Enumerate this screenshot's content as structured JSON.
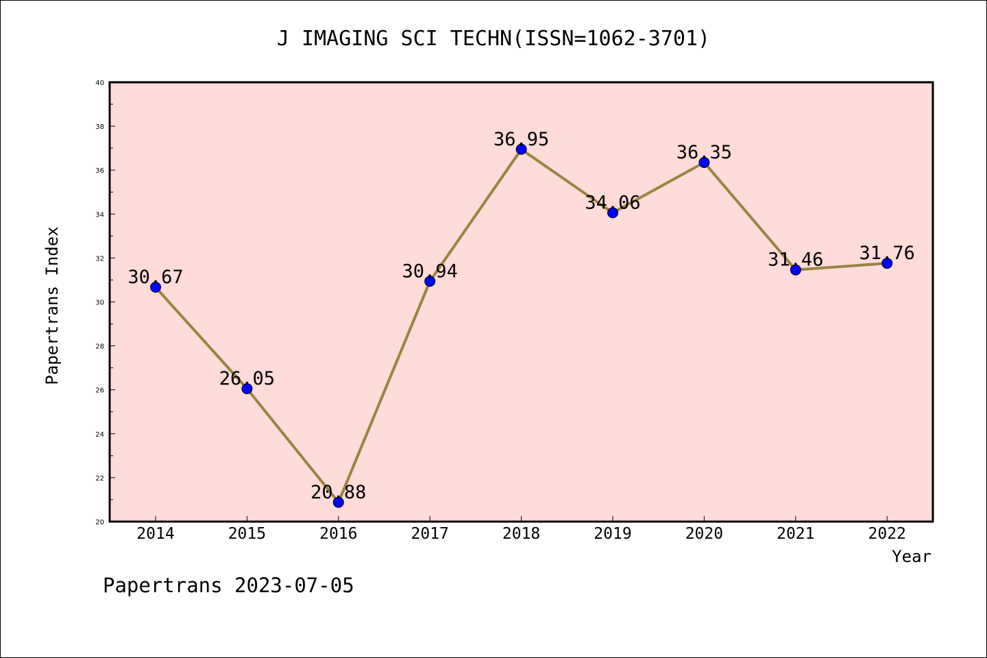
{
  "chart_data": {
    "type": "line",
    "title": "J IMAGING SCI TECHN(ISSN=1062-3701)",
    "xlabel": "Year",
    "ylabel": "Papertrans Index",
    "categories": [
      "2014",
      "2015",
      "2016",
      "2017",
      "2018",
      "2019",
      "2020",
      "2021",
      "2022"
    ],
    "values": [
      30.67,
      26.05,
      20.88,
      30.94,
      36.95,
      34.06,
      36.35,
      31.46,
      31.76
    ],
    "data_labels": [
      "30.67",
      "26.05",
      "20.88",
      "30.94",
      "36.95",
      "34.06",
      "36.35",
      "31.46",
      "31.76"
    ],
    "ylim": [
      20,
      40
    ],
    "y_ticks": [
      "20",
      "22",
      "24",
      "26",
      "28",
      "30",
      "32",
      "34",
      "36",
      "38",
      "40"
    ],
    "grid": false,
    "legend": "none",
    "footer": "Papertrans 2023-07-05",
    "colors": {
      "plot_background": "#ffdbd9",
      "line": "#9b8440",
      "marker": "#0000ff"
    }
  }
}
